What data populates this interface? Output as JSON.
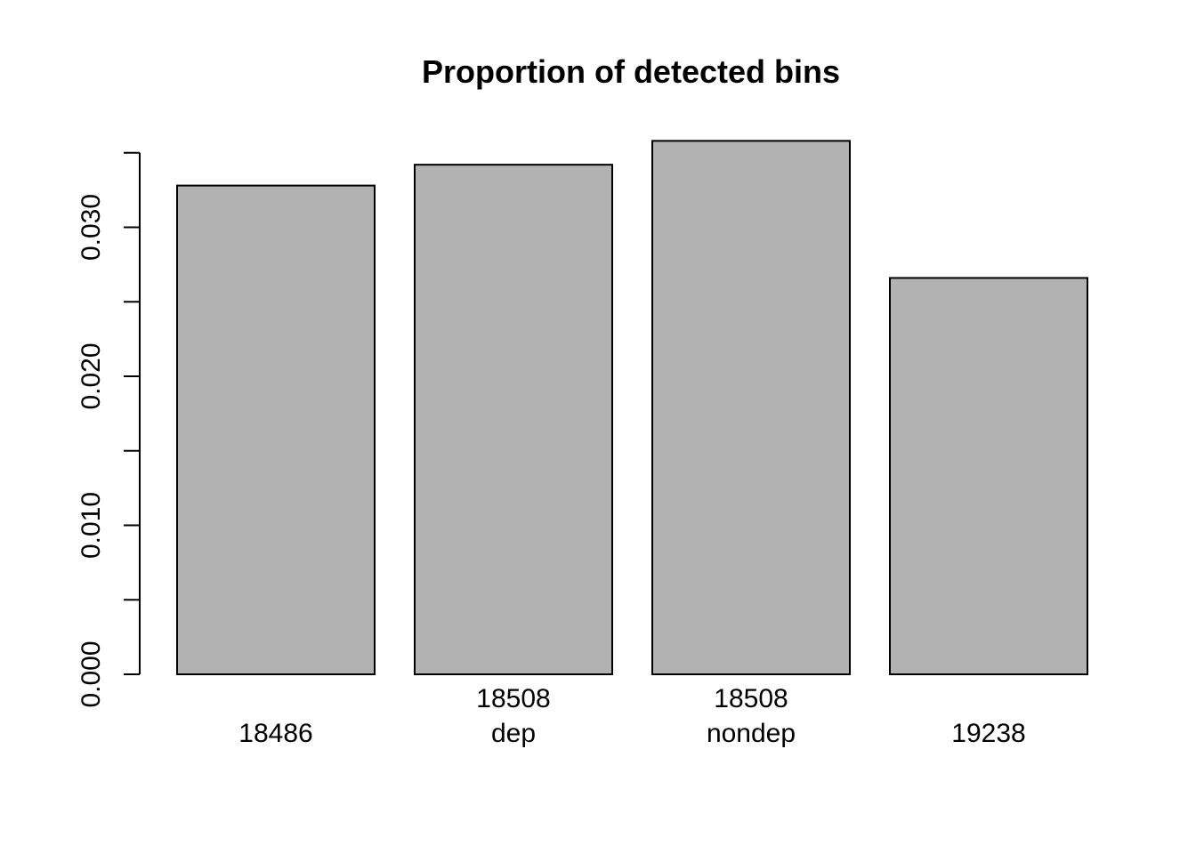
{
  "chart_data": {
    "type": "bar",
    "title": "Proportion of detected bins",
    "xlabel": "",
    "ylabel": "",
    "categories": [
      [
        "",
        "18486"
      ],
      [
        "18508",
        "dep"
      ],
      [
        "18508",
        "nondep"
      ],
      [
        "",
        "19238"
      ]
    ],
    "values": [
      0.0328,
      0.0342,
      0.0358,
      0.0266
    ],
    "ylim": [
      0,
      0.035
    ],
    "yticks": [
      0,
      0.005,
      0.01,
      0.015,
      0.02,
      0.025,
      0.03,
      0.035
    ],
    "ytick_labels": [
      "0.000",
      "",
      "0.010",
      "",
      "0.020",
      "",
      "0.030",
      ""
    ],
    "grid": false,
    "legend": "none",
    "colors": {
      "bar_fill": "#b2b2b2",
      "bar_stroke": "#000000",
      "axis": "#000000",
      "text": "#000000",
      "background": "#ffffff"
    }
  }
}
